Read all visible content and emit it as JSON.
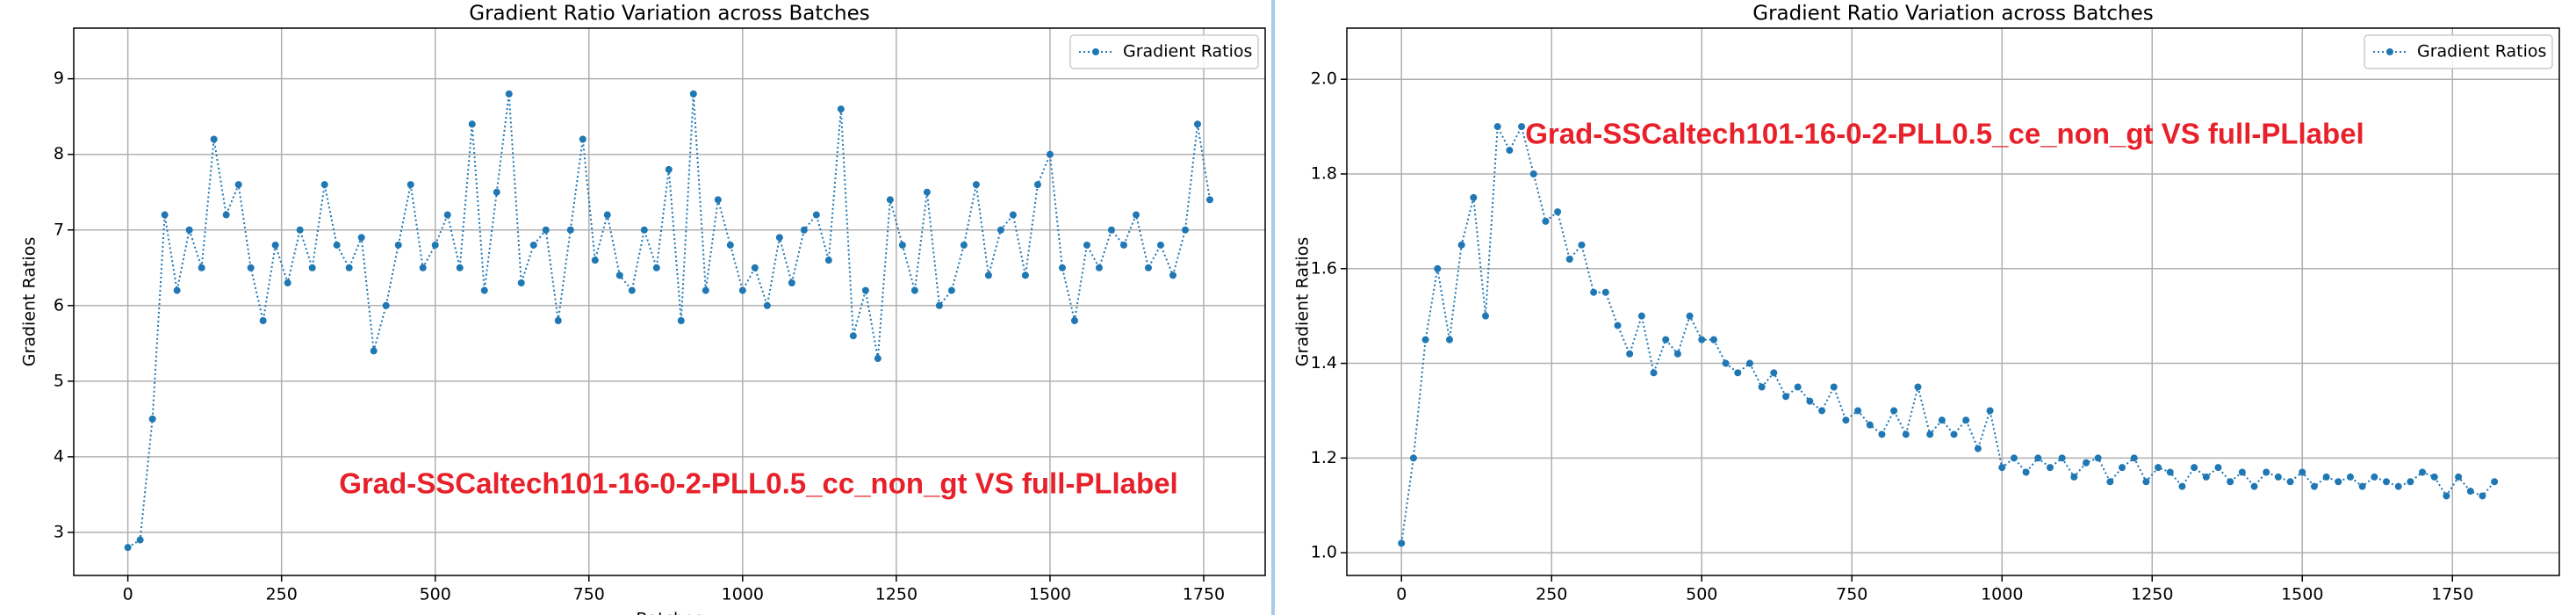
{
  "chart_data": [
    {
      "type": "line",
      "title": "Gradient Ratio Variation across Batches",
      "xlabel": "Batches",
      "ylabel": "Gradient Ratios",
      "annotation": "Grad-SSCaltech101-16-0-2-PLL0.5_cc_non_gt VS full-PLlabel",
      "xlim": [
        -88,
        1850
      ],
      "ylim": [
        2.43,
        9.67
      ],
      "xticks": [
        0,
        250,
        500,
        750,
        1000,
        1250,
        1500,
        1750
      ],
      "yticks": [
        3,
        4,
        5,
        6,
        7,
        8,
        9
      ],
      "grid": true,
      "legend": "upper right",
      "series": [
        {
          "name": "Gradient Ratios",
          "color": "#1f77b4",
          "x": [
            0,
            20,
            40,
            60,
            80,
            100,
            120,
            140,
            160,
            180,
            200,
            220,
            240,
            260,
            280,
            300,
            320,
            340,
            360,
            380,
            400,
            420,
            440,
            460,
            480,
            500,
            520,
            540,
            560,
            580,
            600,
            620,
            640,
            660,
            680,
            700,
            720,
            740,
            760,
            780,
            800,
            820,
            840,
            860,
            880,
            900,
            920,
            940,
            960,
            980,
            1000,
            1020,
            1040,
            1060,
            1080,
            1100,
            1120,
            1140,
            1160,
            1180,
            1200,
            1220,
            1240,
            1260,
            1280,
            1300,
            1320,
            1340,
            1360,
            1380,
            1400,
            1420,
            1440,
            1460,
            1480,
            1500,
            1520,
            1540,
            1560,
            1580,
            1600,
            1620,
            1640,
            1660,
            1680,
            1700,
            1720,
            1740,
            1760
          ],
          "values": [
            2.8,
            2.9,
            4.5,
            7.2,
            6.2,
            7.0,
            6.5,
            8.2,
            7.2,
            7.6,
            6.5,
            5.8,
            6.8,
            6.3,
            7.0,
            6.5,
            7.6,
            6.8,
            6.5,
            6.9,
            5.4,
            6.0,
            6.8,
            7.6,
            6.5,
            6.8,
            7.2,
            6.5,
            8.4,
            6.2,
            7.5,
            8.8,
            6.3,
            6.8,
            7.0,
            5.8,
            7.0,
            8.2,
            6.6,
            7.2,
            6.4,
            6.2,
            7.0,
            6.5,
            7.8,
            5.8,
            8.8,
            6.2,
            7.4,
            6.8,
            6.2,
            6.5,
            6.0,
            6.9,
            6.3,
            7.0,
            7.2,
            6.6,
            8.6,
            5.6,
            6.2,
            5.3,
            7.4,
            6.8,
            6.2,
            7.5,
            6.0,
            6.2,
            6.8,
            7.6,
            6.4,
            7.0,
            7.2,
            6.4,
            7.6,
            8.0,
            6.5,
            5.8,
            6.8,
            6.5,
            7.0,
            6.8,
            7.2,
            6.5,
            6.8,
            6.4,
            7.0,
            8.4,
            7.4
          ]
        }
      ]
    },
    {
      "type": "line",
      "title": "Gradient Ratio Variation across Batches",
      "ylabel": "Gradient Ratios",
      "annotation": "Grad-SSCaltech101-16-0-2-PLL0.5_ce_non_gt VS full-PLlabel",
      "xlim": [
        -91,
        1928
      ],
      "ylim": [
        0.952,
        2.108
      ],
      "xticks": [
        0,
        250,
        500,
        750,
        1000,
        1250,
        1500,
        1750
      ],
      "yticks": [
        {
          "value": 1,
          "label": "1.0"
        },
        1.2,
        1.4,
        1.6,
        1.8,
        {
          "value": 2,
          "label": "2.0"
        }
      ],
      "grid": true,
      "legend": "upper right",
      "series": [
        {
          "name": "Gradient Ratios",
          "color": "#1f77b4",
          "x": [
            0,
            20,
            40,
            60,
            80,
            100,
            120,
            140,
            160,
            180,
            200,
            220,
            240,
            260,
            280,
            300,
            320,
            340,
            360,
            380,
            400,
            420,
            440,
            460,
            480,
            500,
            520,
            540,
            560,
            580,
            600,
            620,
            640,
            660,
            680,
            700,
            720,
            740,
            760,
            780,
            800,
            820,
            840,
            860,
            880,
            900,
            920,
            940,
            960,
            980,
            1000,
            1020,
            1040,
            1060,
            1080,
            1100,
            1120,
            1140,
            1160,
            1180,
            1200,
            1220,
            1240,
            1260,
            1280,
            1300,
            1320,
            1340,
            1360,
            1380,
            1400,
            1420,
            1440,
            1460,
            1480,
            1500,
            1520,
            1540,
            1560,
            1580,
            1600,
            1620,
            1640,
            1660,
            1680,
            1700,
            1720,
            1740,
            1760,
            1780,
            1800,
            1820
          ],
          "values": [
            1.02,
            1.2,
            1.45,
            1.6,
            1.45,
            1.65,
            1.75,
            1.5,
            1.9,
            1.85,
            1.9,
            1.8,
            1.7,
            1.72,
            1.62,
            1.65,
            1.55,
            1.55,
            1.48,
            1.42,
            1.5,
            1.38,
            1.45,
            1.42,
            1.5,
            1.45,
            1.45,
            1.4,
            1.38,
            1.4,
            1.35,
            1.38,
            1.33,
            1.35,
            1.32,
            1.3,
            1.35,
            1.28,
            1.3,
            1.27,
            1.25,
            1.3,
            1.25,
            1.35,
            1.25,
            1.28,
            1.25,
            1.28,
            1.22,
            1.3,
            1.18,
            1.2,
            1.17,
            1.2,
            1.18,
            1.2,
            1.16,
            1.19,
            1.2,
            1.15,
            1.18,
            1.2,
            1.15,
            1.18,
            1.17,
            1.14,
            1.18,
            1.16,
            1.18,
            1.15,
            1.17,
            1.14,
            1.17,
            1.16,
            1.15,
            1.17,
            1.14,
            1.16,
            1.15,
            1.16,
            1.14,
            1.16,
            1.15,
            1.14,
            1.15,
            1.17,
            1.16,
            1.12,
            1.16,
            1.13,
            1.12,
            1.15
          ]
        }
      ]
    }
  ]
}
